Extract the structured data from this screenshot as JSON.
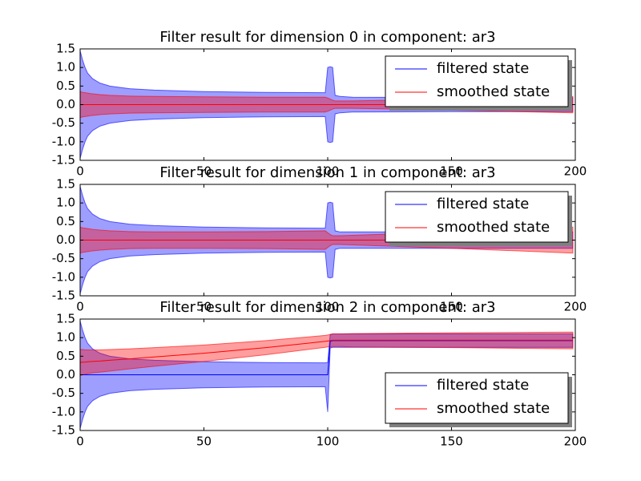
{
  "chart_data": [
    {
      "type": "line",
      "title": "Filter result for dimension 0 in component: ar3",
      "x": [
        0,
        1,
        2,
        3,
        5,
        8,
        12,
        20,
        30,
        50,
        75,
        99,
        100,
        101,
        102,
        103,
        105,
        110,
        150,
        199
      ],
      "series": [
        {
          "name": "filtered state",
          "color": "#0000ff",
          "values": [
            0,
            0,
            0,
            0,
            0,
            0,
            0,
            0,
            0,
            0,
            0,
            0,
            0,
            0,
            0,
            0,
            0,
            0,
            0,
            0
          ],
          "upper": [
            1.45,
            1.2,
            1.0,
            0.85,
            0.7,
            0.58,
            0.5,
            0.43,
            0.39,
            0.35,
            0.33,
            0.32,
            1.0,
            1.02,
            1.0,
            0.25,
            0.22,
            0.2,
            0.19,
            0.19
          ],
          "lower": [
            -1.45,
            -1.2,
            -1.0,
            -0.85,
            -0.7,
            -0.58,
            -0.5,
            -0.43,
            -0.39,
            -0.35,
            -0.33,
            -0.32,
            -1.0,
            -1.02,
            -1.0,
            -0.25,
            -0.22,
            -0.2,
            -0.19,
            -0.19
          ]
        },
        {
          "name": "smoothed state",
          "color": "#ff0000",
          "values": [
            0,
            0,
            0,
            0,
            0,
            0,
            0,
            0,
            0,
            0,
            0,
            0,
            0,
            0,
            0,
            0,
            0,
            0,
            0,
            0
          ],
          "upper": [
            0.35,
            0.33,
            0.32,
            0.31,
            0.29,
            0.27,
            0.25,
            0.23,
            0.22,
            0.21,
            0.2,
            0.2,
            0.18,
            0.15,
            0.12,
            0.1,
            0.1,
            0.1,
            0.15,
            0.22
          ],
          "lower": [
            -0.35,
            -0.33,
            -0.32,
            -0.31,
            -0.29,
            -0.27,
            -0.25,
            -0.23,
            -0.22,
            -0.21,
            -0.2,
            -0.2,
            -0.18,
            -0.15,
            -0.12,
            -0.1,
            -0.1,
            -0.1,
            -0.15,
            -0.22
          ]
        }
      ],
      "xlim": [
        0,
        200
      ],
      "xticks": [
        0,
        50,
        100,
        150,
        200
      ],
      "ylim": [
        -1.5,
        1.5
      ],
      "yticks": [
        -1.5,
        {
          "value": -1.0,
          "label": "-1.0"
        },
        -0.5,
        {
          "value": 0.0,
          "label": "0.0"
        },
        0.5,
        {
          "value": 1.0,
          "label": "1.0"
        },
        1.5
      ],
      "legend": "upper right"
    },
    {
      "type": "line",
      "title": "Filter result for dimension 1 in component: ar3",
      "x": [
        0,
        1,
        2,
        3,
        5,
        8,
        12,
        20,
        30,
        50,
        75,
        99,
        100,
        101,
        102,
        103,
        105,
        110,
        150,
        199
      ],
      "series": [
        {
          "name": "filtered state",
          "color": "#0000ff",
          "values": [
            0,
            0,
            0,
            0,
            0,
            0,
            0,
            0,
            0,
            0,
            0,
            0,
            0,
            0,
            0,
            0,
            0,
            0,
            0,
            0
          ],
          "upper": [
            1.45,
            1.2,
            1.0,
            0.85,
            0.7,
            0.58,
            0.5,
            0.43,
            0.39,
            0.35,
            0.33,
            0.32,
            1.0,
            1.02,
            1.0,
            0.25,
            0.22,
            0.22,
            0.22,
            0.22
          ],
          "lower": [
            -1.45,
            -1.2,
            -1.0,
            -0.85,
            -0.7,
            -0.58,
            -0.5,
            -0.43,
            -0.39,
            -0.35,
            -0.33,
            -0.32,
            -1.0,
            -1.02,
            -1.0,
            -0.25,
            -0.22,
            -0.22,
            -0.22,
            -0.22
          ]
        },
        {
          "name": "smoothed state",
          "color": "#ff0000",
          "values": [
            0,
            0,
            0,
            0,
            0,
            0,
            0,
            0,
            0,
            0,
            0,
            0,
            0,
            0,
            0,
            0,
            0,
            0,
            0,
            0
          ],
          "upper": [
            0.35,
            0.33,
            0.32,
            0.31,
            0.29,
            0.27,
            0.25,
            0.23,
            0.22,
            0.22,
            0.23,
            0.25,
            0.2,
            0.15,
            0.12,
            0.12,
            0.12,
            0.13,
            0.22,
            0.35
          ],
          "lower": [
            -0.35,
            -0.33,
            -0.32,
            -0.31,
            -0.29,
            -0.27,
            -0.25,
            -0.23,
            -0.22,
            -0.22,
            -0.23,
            -0.25,
            -0.2,
            -0.15,
            -0.12,
            -0.12,
            -0.12,
            -0.13,
            -0.22,
            -0.35
          ]
        }
      ],
      "xlim": [
        0,
        200
      ],
      "xticks": [
        0,
        50,
        100,
        150,
        200
      ],
      "ylim": [
        -1.5,
        1.5
      ],
      "yticks": [
        -1.5,
        {
          "value": -1.0,
          "label": "-1.0"
        },
        -0.5,
        {
          "value": 0.0,
          "label": "0.0"
        },
        0.5,
        {
          "value": 1.0,
          "label": "1.0"
        },
        1.5
      ],
      "legend": "upper right"
    },
    {
      "type": "line",
      "title": "Filter result for dimension 2 in component: ar3",
      "x": [
        0,
        1,
        2,
        3,
        5,
        8,
        12,
        20,
        30,
        50,
        75,
        99,
        100,
        101,
        102,
        103,
        105,
        110,
        150,
        199
      ],
      "series": [
        {
          "name": "filtered state",
          "color": "#0000ff",
          "values": [
            0,
            0,
            0,
            0,
            0,
            0,
            0,
            0,
            0,
            0,
            0,
            0,
            0,
            0.9,
            0.92,
            0.92,
            0.92,
            0.92,
            0.92,
            0.92
          ],
          "upper": [
            1.45,
            1.2,
            1.0,
            0.85,
            0.7,
            0.58,
            0.5,
            0.43,
            0.39,
            0.35,
            0.33,
            0.32,
            0.33,
            1.08,
            1.1,
            1.1,
            1.1,
            1.1,
            1.1,
            1.1
          ],
          "lower": [
            -1.45,
            -1.2,
            -1.0,
            -0.85,
            -0.7,
            -0.58,
            -0.5,
            -0.43,
            -0.39,
            -0.35,
            -0.33,
            -0.32,
            -1.0,
            0.72,
            0.74,
            0.74,
            0.74,
            0.74,
            0.74,
            0.74
          ]
        },
        {
          "name": "smoothed state",
          "color": "#ff0000",
          "values": [
            0.33,
            0.34,
            0.34,
            0.35,
            0.36,
            0.37,
            0.39,
            0.43,
            0.48,
            0.58,
            0.73,
            0.9,
            0.91,
            0.92,
            0.93,
            0.93,
            0.93,
            0.93,
            0.93,
            0.93
          ],
          "upper": [
            0.68,
            0.68,
            0.67,
            0.67,
            0.67,
            0.67,
            0.68,
            0.7,
            0.73,
            0.8,
            0.92,
            1.06,
            1.07,
            1.09,
            1.1,
            1.1,
            1.1,
            1.11,
            1.13,
            1.15
          ],
          "lower": [
            -0.02,
            0.0,
            0.01,
            0.03,
            0.05,
            0.07,
            0.1,
            0.16,
            0.23,
            0.36,
            0.54,
            0.74,
            0.75,
            0.75,
            0.76,
            0.76,
            0.76,
            0.75,
            0.73,
            0.7
          ]
        }
      ],
      "xlim": [
        0,
        200
      ],
      "xticks": [
        0,
        50,
        100,
        150,
        200
      ],
      "ylim": [
        -1.5,
        1.5
      ],
      "yticks": [
        -1.5,
        {
          "value": -1.0,
          "label": "-1.0"
        },
        -0.5,
        {
          "value": 0.0,
          "label": "0.0"
        },
        0.5,
        {
          "value": 1.0,
          "label": "1.0"
        },
        1.5
      ],
      "legend": "lower right"
    }
  ]
}
